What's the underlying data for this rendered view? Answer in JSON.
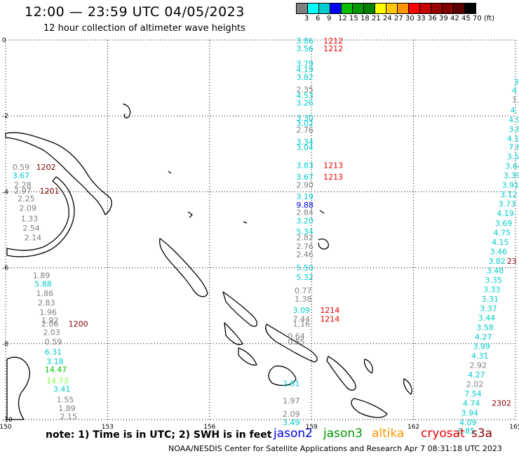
{
  "header": {
    "title": "12:00 — 23:59 UTC 04/05/2023",
    "subtitle": "12 hour collection of altimeter wave heights"
  },
  "color_scale": {
    "labels": [
      "3",
      "6",
      "9",
      "12",
      "15",
      "18",
      "21",
      "24",
      "27",
      "30",
      "33",
      "36",
      "39",
      "42",
      "45",
      "70",
      "(ft)"
    ],
    "colors": [
      "#808080",
      "#00ffff",
      "#00cccc",
      "#0000ff",
      "#00c000",
      "#009600",
      "#008000",
      "#ffff00",
      "#ffc800",
      "#ff9600",
      "#ff0000",
      "#c80000",
      "#960000",
      "#800000",
      "#5a0000",
      "#000000"
    ]
  },
  "axes": {
    "x_ticks": [
      "150",
      "153",
      "156",
      "159",
      "162",
      "165"
    ],
    "y_ticks": [
      "0",
      "-2",
      "-4",
      "-6",
      "-8",
      "-10"
    ]
  },
  "satellites": [
    {
      "name": "jason2",
      "color": "#0000dd"
    },
    {
      "name": "jason3",
      "color": "#009600"
    },
    {
      "name": "altika",
      "color": "#ff9600"
    },
    {
      "name": "cryosat",
      "color": "#ee0000"
    },
    {
      "name": "s3a",
      "color": "#880000"
    }
  ],
  "note": "note: 1) Time is in UTC; 2) SWH is in feet",
  "footer": "NOAA/NESDIS Center for Satellite Applications and Research   Apr  7 08:31:18 UTC 2023",
  "readings": [
    {
      "v": "3.86",
      "lon": 158.55,
      "lat": -0.02,
      "c": "#00cccc"
    },
    {
      "v": "3.56",
      "lon": 158.55,
      "lat": -0.22,
      "c": "#00cccc"
    },
    {
      "v": "1212",
      "lon": 159.35,
      "lat": -0.02,
      "c": "#ee0000"
    },
    {
      "v": "1212",
      "lon": 159.35,
      "lat": -0.22,
      "c": "#ee0000"
    },
    {
      "v": "3.79",
      "lon": 158.55,
      "lat": -0.62,
      "c": "#00cccc"
    },
    {
      "v": "4.19",
      "lon": 158.55,
      "lat": -0.78,
      "c": "#00cccc"
    },
    {
      "v": "3.82",
      "lon": 158.55,
      "lat": -0.98,
      "c": "#00cccc"
    },
    {
      "v": "2.35",
      "lon": 158.55,
      "lat": -1.3,
      "c": "#808080"
    },
    {
      "v": "4.53",
      "lon": 158.55,
      "lat": -1.46,
      "c": "#00cccc"
    },
    {
      "v": "3.26",
      "lon": 158.55,
      "lat": -1.65,
      "c": "#00cccc"
    },
    {
      "v": "3.30",
      "lon": 158.55,
      "lat": -2.05,
      "c": "#00cccc"
    },
    {
      "v": "3.02",
      "lon": 158.55,
      "lat": -2.2,
      "c": "#00cccc"
    },
    {
      "v": "2.76",
      "lon": 158.55,
      "lat": -2.37,
      "c": "#808080"
    },
    {
      "v": "3.34",
      "lon": 158.55,
      "lat": -2.68,
      "c": "#00cccc"
    },
    {
      "v": "3.04",
      "lon": 158.55,
      "lat": -2.83,
      "c": "#00cccc"
    },
    {
      "v": "3.83",
      "lon": 158.55,
      "lat": -3.3,
      "c": "#00cccc"
    },
    {
      "v": "1213",
      "lon": 159.35,
      "lat": -3.3,
      "c": "#ee0000"
    },
    {
      "v": "3.67",
      "lon": 158.55,
      "lat": -3.6,
      "c": "#00cccc"
    },
    {
      "v": "1213",
      "lon": 159.35,
      "lat": -3.6,
      "c": "#ee0000"
    },
    {
      "v": "2.90",
      "lon": 158.55,
      "lat": -3.82,
      "c": "#808080"
    },
    {
      "v": "3.19",
      "lon": 158.55,
      "lat": -4.12,
      "c": "#00cccc"
    },
    {
      "v": "9.88",
      "lon": 158.55,
      "lat": -4.34,
      "c": "#0000ff"
    },
    {
      "v": "2.84",
      "lon": 158.55,
      "lat": -4.54,
      "c": "#808080"
    },
    {
      "v": "3.20",
      "lon": 158.55,
      "lat": -4.76,
      "c": "#00cccc"
    },
    {
      "v": "5.34",
      "lon": 158.55,
      "lat": -5.05,
      "c": "#00cccc"
    },
    {
      "v": "2.82",
      "lon": 158.55,
      "lat": -5.2,
      "c": "#808080"
    },
    {
      "v": "2.76",
      "lon": 158.55,
      "lat": -5.43,
      "c": "#808080"
    },
    {
      "v": "2.46",
      "lon": 158.55,
      "lat": -5.65,
      "c": "#808080"
    },
    {
      "v": "5.50",
      "lon": 158.55,
      "lat": -6.0,
      "c": "#00cccc"
    },
    {
      "v": "5.32",
      "lon": 158.55,
      "lat": -6.25,
      "c": "#00cccc"
    },
    {
      "v": "0.77",
      "lon": 158.5,
      "lat": -6.6,
      "c": "#808080"
    },
    {
      "v": "1.38",
      "lon": 158.5,
      "lat": -6.82,
      "c": "#808080"
    },
    {
      "v": "3.09",
      "lon": 158.45,
      "lat": -7.12,
      "c": "#00cccc"
    },
    {
      "v": "1214",
      "lon": 159.25,
      "lat": -7.12,
      "c": "#ee0000"
    },
    {
      "v": "7.44",
      "lon": 158.45,
      "lat": -7.35,
      "c": "#808080"
    },
    {
      "v": "1214",
      "lon": 159.25,
      "lat": -7.35,
      "c": "#ee0000"
    },
    {
      "v": "1.16",
      "lon": 158.45,
      "lat": -7.48,
      "c": "#808080"
    },
    {
      "v": "0.64",
      "lon": 158.3,
      "lat": -7.8,
      "c": "#808080"
    },
    {
      "v": "0.85",
      "lon": 158.3,
      "lat": -7.95,
      "c": "#808080"
    },
    {
      "v": "2.81",
      "lon": 158.15,
      "lat": -9.05,
      "c": "#00cccc"
    },
    {
      "v": "1.97",
      "lon": 158.15,
      "lat": -9.5,
      "c": "#808080"
    },
    {
      "v": "2.09",
      "lon": 158.15,
      "lat": -9.85,
      "c": "#808080"
    },
    {
      "v": "3.49",
      "lon": 158.15,
      "lat": -10.07,
      "c": "#00cccc"
    },
    {
      "v": "0.59",
      "lon": 150.2,
      "lat": -3.35,
      "c": "#808080"
    },
    {
      "v": "3.67",
      "lon": 150.2,
      "lat": -3.57,
      "c": "#00cccc"
    },
    {
      "v": "1202",
      "lon": 150.9,
      "lat": -3.35,
      "c": "#880000"
    },
    {
      "v": "2.28",
      "lon": 150.25,
      "lat": -3.82,
      "c": "#808080"
    },
    {
      "v": "2.97",
      "lon": 150.25,
      "lat": -3.97,
      "c": "#808080"
    },
    {
      "v": "1201",
      "lon": 151.0,
      "lat": -3.97,
      "c": "#880000"
    },
    {
      "v": "2.25",
      "lon": 150.35,
      "lat": -4.18,
      "c": "#808080"
    },
    {
      "v": "2.09",
      "lon": 150.4,
      "lat": -4.43,
      "c": "#808080"
    },
    {
      "v": "1.33",
      "lon": 150.45,
      "lat": -4.7,
      "c": "#808080"
    },
    {
      "v": "2.54",
      "lon": 150.5,
      "lat": -4.95,
      "c": "#808080"
    },
    {
      "v": "2.14",
      "lon": 150.55,
      "lat": -5.2,
      "c": "#808080"
    },
    {
      "v": "1.89",
      "lon": 150.8,
      "lat": -6.2,
      "c": "#808080"
    },
    {
      "v": "5.88",
      "lon": 150.85,
      "lat": -6.42,
      "c": "#00cccc"
    },
    {
      "v": "1.86",
      "lon": 150.9,
      "lat": -6.67,
      "c": "#808080"
    },
    {
      "v": "2.83",
      "lon": 150.95,
      "lat": -6.92,
      "c": "#808080"
    },
    {
      "v": "1.96",
      "lon": 151.0,
      "lat": -7.17,
      "c": "#808080"
    },
    {
      "v": "1.92",
      "lon": 151.05,
      "lat": -7.38,
      "c": "#808080"
    },
    {
      "v": "2.06",
      "lon": 151.05,
      "lat": -7.48,
      "c": "#808080"
    },
    {
      "v": "1200",
      "lon": 151.85,
      "lat": -7.48,
      "c": "#880000"
    },
    {
      "v": "2.03",
      "lon": 151.1,
      "lat": -7.7,
      "c": "#808080"
    },
    {
      "v": "0.59",
      "lon": 151.15,
      "lat": -7.95,
      "c": "#808080"
    },
    {
      "v": "6.31",
      "lon": 151.15,
      "lat": -8.22,
      "c": "#00cccc"
    },
    {
      "v": "3.18",
      "lon": 151.2,
      "lat": -8.47,
      "c": "#00cccc"
    },
    {
      "v": "14.47",
      "lon": 151.15,
      "lat": -8.68,
      "c": "#00c000"
    },
    {
      "v": "14.73",
      "lon": 151.2,
      "lat": -8.97,
      "c": "#80ff40"
    },
    {
      "v": "3.41",
      "lon": 151.4,
      "lat": -9.2,
      "c": "#00cccc"
    },
    {
      "v": "1.55",
      "lon": 151.5,
      "lat": -9.47,
      "c": "#808080"
    },
    {
      "v": "1.89",
      "lon": 151.55,
      "lat": -9.7,
      "c": "#808080"
    },
    {
      "v": "2.15",
      "lon": 151.6,
      "lat": -9.92,
      "c": "#808080"
    },
    {
      "v": "3",
      "lon": 164.95,
      "lat": -1.1,
      "c": "#00cccc"
    },
    {
      "v": "4",
      "lon": 164.9,
      "lat": -1.32,
      "c": "#00cccc"
    },
    {
      "v": "1.",
      "lon": 164.9,
      "lat": -1.57,
      "c": "#808080"
    },
    {
      "v": "4.",
      "lon": 164.85,
      "lat": -1.85,
      "c": "#00cccc"
    },
    {
      "v": "4.9",
      "lon": 164.8,
      "lat": -2.1,
      "c": "#00cccc"
    },
    {
      "v": "3.8",
      "lon": 164.8,
      "lat": -2.35,
      "c": "#00cccc"
    },
    {
      "v": "4.1",
      "lon": 164.75,
      "lat": -2.6,
      "c": "#00cccc"
    },
    {
      "v": "7.61",
      "lon": 164.8,
      "lat": -2.82,
      "c": "#00cccc"
    },
    {
      "v": "3.59",
      "lon": 164.75,
      "lat": -3.07,
      "c": "#00cccc"
    },
    {
      "v": "3.64",
      "lon": 164.7,
      "lat": -3.32,
      "c": "#00cccc"
    },
    {
      "v": "3.39",
      "lon": 164.65,
      "lat": -3.57,
      "c": "#00cccc"
    },
    {
      "v": "3.91",
      "lon": 164.6,
      "lat": -3.82,
      "c": "#00cccc"
    },
    {
      "v": "3.12",
      "lon": 164.55,
      "lat": -4.07,
      "c": "#00cccc"
    },
    {
      "v": "3.73",
      "lon": 164.5,
      "lat": -4.32,
      "c": "#00cccc"
    },
    {
      "v": "4.19",
      "lon": 164.45,
      "lat": -4.57,
      "c": "#00cccc"
    },
    {
      "v": "3.69",
      "lon": 164.4,
      "lat": -4.82,
      "c": "#00cccc"
    },
    {
      "v": "4.75",
      "lon": 164.35,
      "lat": -5.07,
      "c": "#00cccc"
    },
    {
      "v": "4.15",
      "lon": 164.3,
      "lat": -5.32,
      "c": "#00cccc"
    },
    {
      "v": "3.46",
      "lon": 164.25,
      "lat": -5.57,
      "c": "#00cccc"
    },
    {
      "v": "3.82",
      "lon": 164.2,
      "lat": -5.82,
      "c": "#00cccc"
    },
    {
      "v": "23",
      "lon": 164.75,
      "lat": -5.82,
      "c": "#880000"
    },
    {
      "v": "3.48",
      "lon": 164.15,
      "lat": -6.07,
      "c": "#00cccc"
    },
    {
      "v": "3.35",
      "lon": 164.1,
      "lat": -6.32,
      "c": "#00cccc"
    },
    {
      "v": "3.33",
      "lon": 164.05,
      "lat": -6.57,
      "c": "#00cccc"
    },
    {
      "v": "3.31",
      "lon": 164.0,
      "lat": -6.82,
      "c": "#00cccc"
    },
    {
      "v": "3.37",
      "lon": 163.95,
      "lat": -7.07,
      "c": "#00cccc"
    },
    {
      "v": "3.44",
      "lon": 163.9,
      "lat": -7.32,
      "c": "#00cccc"
    },
    {
      "v": "3.58",
      "lon": 163.85,
      "lat": -7.57,
      "c": "#00cccc"
    },
    {
      "v": "4.27",
      "lon": 163.8,
      "lat": -7.82,
      "c": "#00cccc"
    },
    {
      "v": "3.99",
      "lon": 163.75,
      "lat": -8.07,
      "c": "#00cccc"
    },
    {
      "v": "4.31",
      "lon": 163.7,
      "lat": -8.32,
      "c": "#00cccc"
    },
    {
      "v": "2.92",
      "lon": 163.65,
      "lat": -8.57,
      "c": "#808080"
    },
    {
      "v": "4.27",
      "lon": 163.6,
      "lat": -8.82,
      "c": "#00cccc"
    },
    {
      "v": "2.02",
      "lon": 163.55,
      "lat": -9.07,
      "c": "#808080"
    },
    {
      "v": "7.54",
      "lon": 163.5,
      "lat": -9.32,
      "c": "#00cccc"
    },
    {
      "v": "4.74",
      "lon": 163.45,
      "lat": -9.57,
      "c": "#00cccc"
    },
    {
      "v": "2302",
      "lon": 164.3,
      "lat": -9.57,
      "c": "#880000"
    },
    {
      "v": "3.94",
      "lon": 163.4,
      "lat": -9.82,
      "c": "#00cccc"
    },
    {
      "v": "4.09",
      "lon": 163.35,
      "lat": -10.07,
      "c": "#00cccc"
    },
    {
      "v": "8.85",
      "lon": 163.3,
      "lat": -10.3,
      "c": "#00cccc"
    }
  ]
}
